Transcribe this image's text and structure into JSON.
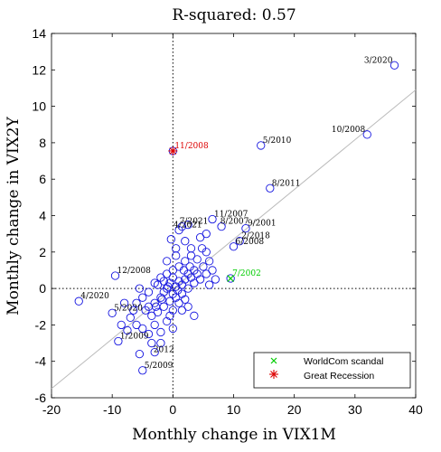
{
  "chart_data": {
    "type": "scatter",
    "title": "R-squared: 0.57",
    "xlabel": "Monthly change in VIX1M",
    "ylabel": "Monthly change in VIX2Y",
    "xlim": [
      -20,
      40
    ],
    "ylim": [
      -6,
      14
    ],
    "xticks": [
      -20,
      -10,
      0,
      10,
      20,
      30,
      40
    ],
    "yticks": [
      -6,
      -4,
      -2,
      0,
      2,
      4,
      6,
      8,
      10,
      12,
      14
    ],
    "grid": false,
    "legend_position": "bottom-right",
    "fit_line": {
      "x": [
        -20,
        40
      ],
      "y": [
        -5.5,
        10.9
      ]
    },
    "points": [
      [
        36.5,
        12.25
      ],
      [
        32.0,
        8.45
      ],
      [
        14.5,
        7.85
      ],
      [
        16.0,
        5.5
      ],
      [
        9.5,
        0.55
      ],
      [
        0.0,
        7.55
      ],
      [
        -15.5,
        -0.7
      ],
      [
        -9.5,
        0.7
      ],
      [
        -10.0,
        -1.35
      ],
      [
        -9.0,
        -2.9
      ],
      [
        -5.0,
        -4.5
      ],
      [
        -5.5,
        -3.6
      ],
      [
        11.0,
        2.6
      ],
      [
        10.0,
        2.3
      ],
      [
        12.0,
        3.3
      ],
      [
        8.0,
        3.4
      ],
      [
        6.5,
        3.8
      ],
      [
        1.5,
        3.4
      ],
      [
        1.0,
        3.2
      ],
      [
        2.5,
        3.5
      ],
      [
        -3.5,
        -3.0
      ],
      [
        -4.0,
        -2.5
      ],
      [
        -3.0,
        -2.0
      ],
      [
        -5.0,
        -2.2
      ],
      [
        -6.0,
        -2.0
      ],
      [
        -7.0,
        -1.6
      ],
      [
        -8.0,
        -0.8
      ],
      [
        -4.0,
        -1.0
      ],
      [
        -3.0,
        -0.8
      ],
      [
        -2.0,
        -0.5
      ],
      [
        -1.5,
        -0.2
      ],
      [
        -1.0,
        0.0
      ],
      [
        -0.5,
        0.3
      ],
      [
        0.0,
        -0.3
      ],
      [
        0.5,
        0.1
      ],
      [
        1.0,
        0.4
      ],
      [
        1.5,
        0.2
      ],
      [
        2.0,
        0.5
      ],
      [
        2.5,
        0.8
      ],
      [
        3.0,
        0.6
      ],
      [
        3.5,
        1.0
      ],
      [
        4.0,
        0.8
      ],
      [
        5.0,
        1.2
      ],
      [
        5.5,
        2.0
      ],
      [
        6.0,
        1.5
      ],
      [
        4.5,
        2.8
      ],
      [
        3.0,
        1.8
      ],
      [
        2.0,
        1.5
      ],
      [
        1.0,
        1.2
      ],
      [
        0.0,
        1.0
      ],
      [
        -1.0,
        0.8
      ],
      [
        -2.0,
        0.6
      ],
      [
        -3.0,
        0.3
      ],
      [
        -4.0,
        -0.2
      ],
      [
        -5.0,
        -0.5
      ],
      [
        -6.0,
        -0.8
      ],
      [
        -2.5,
        -1.3
      ],
      [
        -1.5,
        -1.0
      ],
      [
        -0.5,
        -0.7
      ],
      [
        0.5,
        -0.5
      ],
      [
        1.5,
        -0.3
      ],
      [
        2.5,
        0.0
      ],
      [
        3.5,
        0.3
      ],
      [
        4.5,
        0.5
      ],
      [
        5.5,
        0.8
      ],
      [
        6.5,
        1.0
      ],
      [
        7.0,
        0.5
      ],
      [
        -2.0,
        -2.4
      ],
      [
        -1.0,
        -1.8
      ],
      [
        0.0,
        -1.2
      ],
      [
        1.0,
        -0.8
      ],
      [
        2.0,
        -0.6
      ],
      [
        -3.5,
        -1.5
      ],
      [
        -4.5,
        -1.2
      ],
      [
        3.0,
        2.2
      ],
      [
        4.0,
        1.6
      ],
      [
        -1.0,
        1.5
      ],
      [
        0.5,
        1.8
      ],
      [
        -0.5,
        -1.5
      ],
      [
        1.5,
        -1.2
      ],
      [
        2.5,
        -1.0
      ],
      [
        -2.5,
        0.2
      ],
      [
        -1.5,
        0.4
      ],
      [
        0.0,
        0.6
      ],
      [
        2.0,
        2.6
      ],
      [
        0.5,
        2.2
      ],
      [
        -0.3,
        2.7
      ],
      [
        6.0,
        0.2
      ],
      [
        -6.5,
        -1.2
      ],
      [
        -5.5,
        0.0
      ],
      [
        -7.5,
        -2.3
      ],
      [
        -3.0,
        -3.5
      ],
      [
        -8.5,
        -2.0
      ],
      [
        0.0,
        -2.2
      ],
      [
        -2.0,
        -3.0
      ],
      [
        3.5,
        -1.5
      ],
      [
        5.5,
        3.0
      ],
      [
        -0.8,
        0.1
      ],
      [
        0.8,
        -0.1
      ],
      [
        1.8,
        1.0
      ],
      [
        -1.8,
        -0.6
      ],
      [
        2.8,
        1.2
      ],
      [
        -2.8,
        -1.0
      ],
      [
        4.8,
        2.2
      ]
    ],
    "labels": [
      {
        "text": "3/2020",
        "x": 36.5,
        "y": 12.25,
        "dx": -1,
        "dy": -1
      },
      {
        "text": "10/2008",
        "x": 32.0,
        "y": 8.45,
        "dx": -1,
        "dy": -1
      },
      {
        "text": "5/2010",
        "x": 14.5,
        "y": 7.85,
        "dx": 1,
        "dy": -1
      },
      {
        "text": "8/2011",
        "x": 16.0,
        "y": 5.5,
        "dx": 1,
        "dy": -1
      },
      {
        "text": "11/2008",
        "x": 0.0,
        "y": 7.55,
        "dx": 1,
        "dy": -1
      },
      {
        "text": "7/2002",
        "x": 9.5,
        "y": 0.55,
        "dx": 1,
        "dy": -1
      },
      {
        "text": "11/2007",
        "x": 6.5,
        "y": 3.8,
        "dx": 1,
        "dy": -1
      },
      {
        "text": "7/2021",
        "x": 0.8,
        "y": 3.4,
        "dx": 1,
        "dy": -1
      },
      {
        "text": "4/2021",
        "x": -0.2,
        "y": 3.2,
        "dx": 1,
        "dy": -1
      },
      {
        "text": "8/2007",
        "x": 7.5,
        "y": 3.4,
        "dx": 1,
        "dy": -1
      },
      {
        "text": "9/2001",
        "x": 12.0,
        "y": 3.3,
        "dx": 1,
        "dy": -1
      },
      {
        "text": "2/2018",
        "x": 11.0,
        "y": 2.6,
        "dx": 1,
        "dy": -1
      },
      {
        "text": "6/2008",
        "x": 10.0,
        "y": 2.3,
        "dx": 1,
        "dy": -1
      },
      {
        "text": "12/2008",
        "x": -9.5,
        "y": 0.7,
        "dx": 1,
        "dy": -1
      },
      {
        "text": "4/2020",
        "x": -15.5,
        "y": -0.7,
        "dx": 1,
        "dy": -1
      },
      {
        "text": "5/2020",
        "x": -10.0,
        "y": -1.35,
        "dx": 1,
        "dy": -1
      },
      {
        "text": "1/2009",
        "x": -9.0,
        "y": -2.9,
        "dx": 1,
        "dy": -1
      },
      {
        "text": "2012",
        "x": -3.5,
        "y": -3.0,
        "dx": 1,
        "dy": 1
      },
      {
        "text": "5/2009",
        "x": -5.0,
        "y": -4.5,
        "dx": 1,
        "dy": -1
      }
    ],
    "worldcom_point": [
      9.5,
      0.55
    ],
    "recession_point": [
      0.0,
      7.55
    ],
    "legend": [
      "WorldCom scandal",
      "Great Recession"
    ],
    "colors": {
      "marker": "#1515e0",
      "worldcom": "#00cc00",
      "recession": "#dd0000",
      "fit": "#bbbbbb",
      "axis": "#000000"
    }
  }
}
